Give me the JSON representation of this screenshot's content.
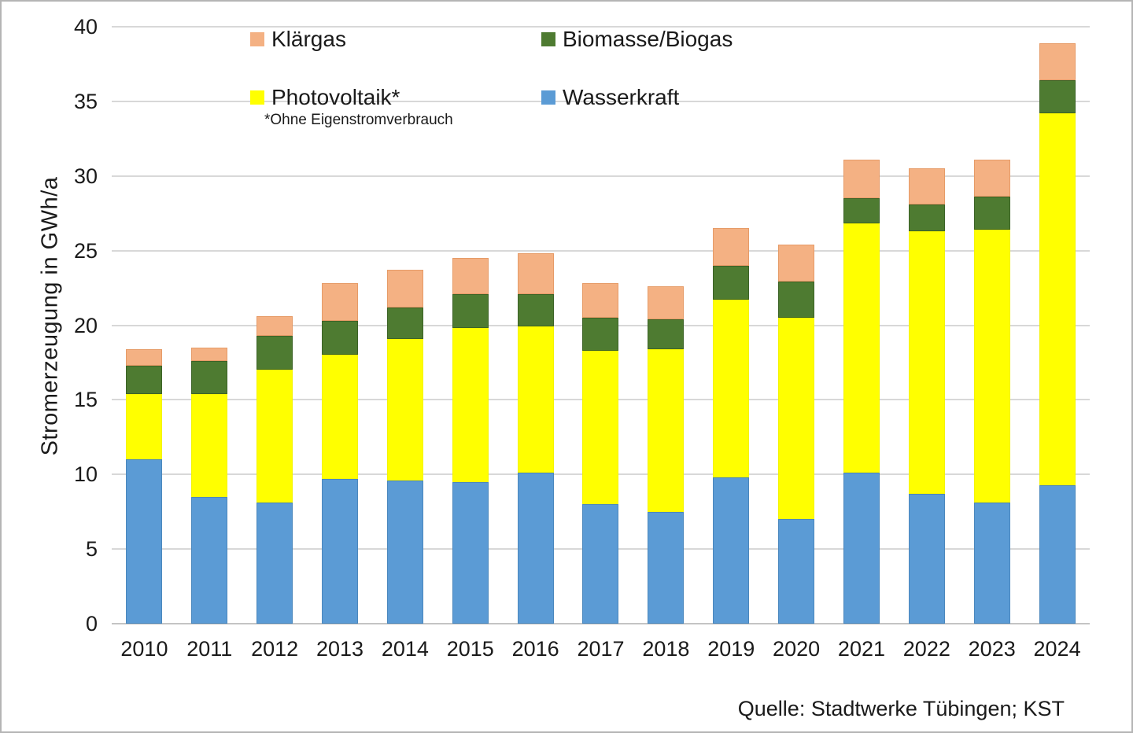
{
  "page": {
    "source_note": "Quelle: Stadtwerke Tübingen; KST"
  },
  "chart_data": {
    "type": "bar",
    "stacked": true,
    "title": "",
    "xlabel": "",
    "ylabel": "Stromerzeugung in GWh/a",
    "ylim": [
      0,
      40
    ],
    "yticks": [
      0,
      5,
      10,
      15,
      20,
      25,
      30,
      35,
      40
    ],
    "grid": true,
    "footnote": "*Ohne Eigenstromverbrauch",
    "categories": [
      "2010",
      "2011",
      "2012",
      "2013",
      "2014",
      "2015",
      "2016",
      "2017",
      "2018",
      "2019",
      "2020",
      "2021",
      "2022",
      "2023",
      "2024"
    ],
    "series": [
      {
        "name": "Wasserkraft",
        "color": "#5B9BD5",
        "border": "#4a87bd",
        "values": [
          11.0,
          8.5,
          8.1,
          9.7,
          9.6,
          9.5,
          10.1,
          8.0,
          7.5,
          9.8,
          7.0,
          10.1,
          8.7,
          8.1,
          9.3
        ]
      },
      {
        "name": "Photovoltaik*",
        "color": "#FFFF00",
        "border": "#f4f400",
        "values": [
          4.4,
          6.9,
          8.9,
          8.3,
          9.5,
          10.3,
          9.8,
          10.3,
          10.9,
          11.9,
          13.5,
          16.7,
          17.6,
          18.3,
          24.9
        ]
      },
      {
        "name": "Biomasse/Biogas",
        "color": "#4E7B31",
        "border": "#3c6326",
        "values": [
          1.9,
          2.2,
          2.3,
          2.3,
          2.1,
          2.3,
          2.2,
          2.2,
          2.0,
          2.3,
          2.4,
          1.7,
          1.8,
          2.2,
          2.2
        ]
      },
      {
        "name": "Klärgas",
        "color": "#F4B183",
        "border": "#e69b67",
        "values": [
          1.1,
          0.9,
          1.3,
          2.5,
          2.5,
          2.4,
          2.7,
          2.3,
          2.2,
          2.5,
          2.5,
          2.6,
          2.4,
          2.5,
          2.5
        ]
      }
    ],
    "totals": [
      18.4,
      18.5,
      20.6,
      22.8,
      23.7,
      24.5,
      24.8,
      22.8,
      22.6,
      26.5,
      25.4,
      31.1,
      30.5,
      31.1,
      38.9
    ],
    "legend": {
      "position": "top",
      "items": [
        {
          "label": "Klärgas",
          "color": "#F4B183"
        },
        {
          "label": "Biomasse/Biogas",
          "color": "#4E7B31"
        },
        {
          "label": "Photovoltaik*",
          "color": "#FFFF00"
        },
        {
          "label": "Wasserkraft",
          "color": "#5B9BD5"
        }
      ]
    }
  }
}
